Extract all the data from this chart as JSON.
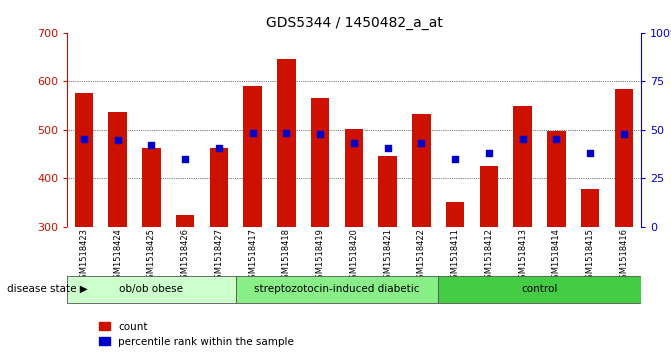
{
  "title": "GDS5344 / 1450482_a_at",
  "samples": [
    "GSM1518423",
    "GSM1518424",
    "GSM1518425",
    "GSM1518426",
    "GSM1518427",
    "GSM1518417",
    "GSM1518418",
    "GSM1518419",
    "GSM1518420",
    "GSM1518421",
    "GSM1518422",
    "GSM1518411",
    "GSM1518412",
    "GSM1518413",
    "GSM1518414",
    "GSM1518415",
    "GSM1518416"
  ],
  "counts": [
    575,
    537,
    463,
    325,
    463,
    590,
    645,
    565,
    502,
    446,
    532,
    352,
    425,
    548,
    497,
    378,
    585
  ],
  "percentile_ranks_left": [
    482,
    478,
    468,
    440,
    462,
    494,
    494,
    491,
    472,
    462,
    472,
    440,
    452,
    480,
    480,
    452,
    491
  ],
  "groups": [
    {
      "label": "ob/ob obese",
      "start": 0,
      "end": 5
    },
    {
      "label": "streptozotocin-induced diabetic",
      "start": 5,
      "end": 11
    },
    {
      "label": "control",
      "start": 11,
      "end": 17
    }
  ],
  "group_colors": [
    "#ccffcc",
    "#88ee88",
    "#44cc44"
  ],
  "bar_color": "#cc1100",
  "dot_color": "#0000cc",
  "ylim_left": [
    300,
    700
  ],
  "ylim_right": [
    0,
    100
  ],
  "yticks_left": [
    300,
    400,
    500,
    600,
    700
  ],
  "yticks_right": [
    0,
    25,
    50,
    75,
    100
  ],
  "ytick_labels_right": [
    "0",
    "25",
    "50",
    "75",
    "100%"
  ],
  "plot_bg_color": "#ffffff",
  "fig_bg_color": "#ffffff",
  "label_bg_color": "#cccccc",
  "title_fontsize": 10
}
